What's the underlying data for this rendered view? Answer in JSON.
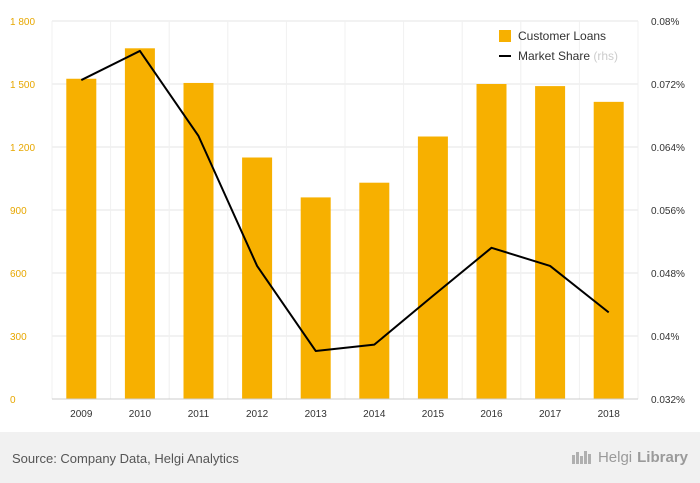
{
  "chart_data": {
    "type": "bar",
    "categories": [
      "2009",
      "2010",
      "2011",
      "2012",
      "2013",
      "2014",
      "2015",
      "2016",
      "2017",
      "2018"
    ],
    "series": [
      {
        "name": "Customer Loans",
        "type": "bar",
        "axis": "left",
        "color": "#f7b000",
        "values": [
          1525,
          1670,
          1505,
          1150,
          960,
          1030,
          1250,
          1500,
          1490,
          1415
        ]
      },
      {
        "name": "Market Share",
        "name_suffix": "(rhs)",
        "type": "line",
        "axis": "right",
        "color": "#000000",
        "values": [
          0.0725,
          0.0762,
          0.0654,
          0.0489,
          0.0381,
          0.0389,
          0.0451,
          0.0512,
          0.0489,
          0.043
        ]
      }
    ],
    "y_left": {
      "ylim": [
        0,
        1800
      ],
      "ticks": [
        0,
        300,
        600,
        900,
        1200,
        1500,
        1800
      ],
      "tick_labels": [
        "0",
        "300",
        "600",
        "900",
        "1 200",
        "1 500",
        "1 800"
      ],
      "color": "#e7a700"
    },
    "y_right": {
      "ylim": [
        0.032,
        0.08
      ],
      "ticks": [
        0.032,
        0.04,
        0.048,
        0.056,
        0.064,
        0.072,
        0.08
      ],
      "tick_labels": [
        "0.032%",
        "0.04%",
        "0.048%",
        "0.056%",
        "0.064%",
        "0.072%",
        "0.08%"
      ]
    },
    "grid": true,
    "legend_position": "top-right",
    "title": "",
    "xlabel": "",
    "ylabel": ""
  },
  "footer": {
    "source": "Source: Company Data, Helgi Analytics",
    "brand_prefix": "Helgi",
    "brand_suffix": "Library"
  }
}
